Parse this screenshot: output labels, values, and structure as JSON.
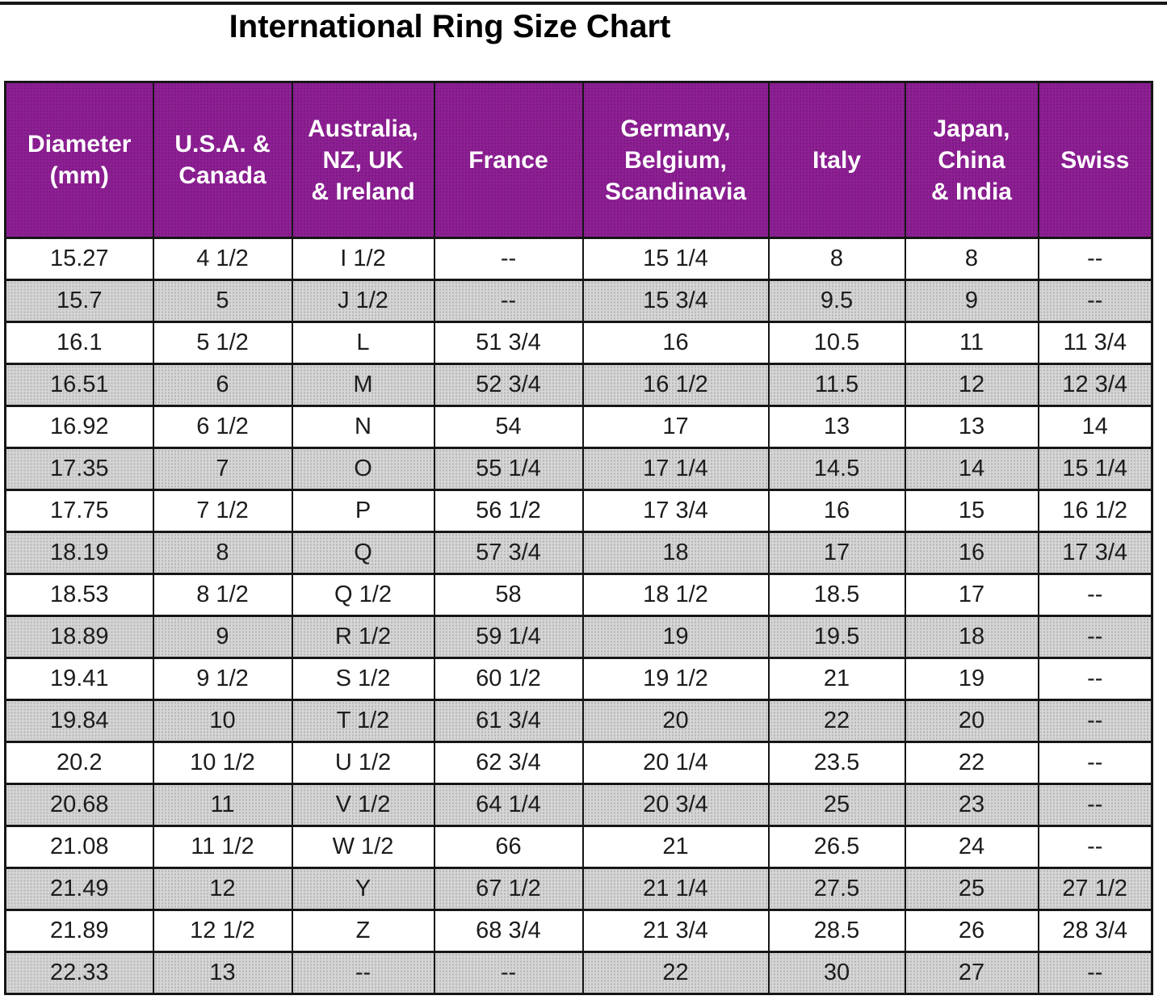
{
  "page": {
    "title": "International Ring Size Chart"
  },
  "colors": {
    "title_text": "#000000",
    "header_bg": "#8E2094",
    "header_text": "#FFFFFF",
    "row_white": "#FFFFFF",
    "row_gray": "#D0D0D0",
    "border": "#161616"
  },
  "chart_data": {
    "type": "table",
    "title": "International Ring Size Chart",
    "columns": [
      "Diameter\n(mm)",
      "U.S.A. &\nCanada",
      "Australia,\nNZ, UK\n& Ireland",
      "France",
      "Germany,\nBelgium,\nScandinavia",
      "Italy",
      "Japan,\nChina\n& India",
      "Swiss"
    ],
    "rows": [
      [
        "15.27",
        "4 1/2",
        "I 1/2",
        "--",
        "15 1/4",
        "8",
        "8",
        "--"
      ],
      [
        "15.7",
        "5",
        "J 1/2",
        "--",
        "15 3/4",
        "9.5",
        "9",
        "--"
      ],
      [
        "16.1",
        "5 1/2",
        "L",
        "51 3/4",
        "16",
        "10.5",
        "11",
        "11 3/4"
      ],
      [
        "16.51",
        "6",
        "M",
        "52 3/4",
        "16 1/2",
        "11.5",
        "12",
        "12 3/4"
      ],
      [
        "16.92",
        "6 1/2",
        "N",
        "54",
        "17",
        "13",
        "13",
        "14"
      ],
      [
        "17.35",
        "7",
        "O",
        "55 1/4",
        "17 1/4",
        "14.5",
        "14",
        "15 1/4"
      ],
      [
        "17.75",
        "7 1/2",
        "P",
        "56 1/2",
        "17 3/4",
        "16",
        "15",
        "16 1/2"
      ],
      [
        "18.19",
        "8",
        "Q",
        "57 3/4",
        "18",
        "17",
        "16",
        "17 3/4"
      ],
      [
        "18.53",
        "8 1/2",
        "Q 1/2",
        "58",
        "18 1/2",
        "18.5",
        "17",
        "--"
      ],
      [
        "18.89",
        "9",
        "R 1/2",
        "59 1/4",
        "19",
        "19.5",
        "18",
        "--"
      ],
      [
        "19.41",
        "9 1/2",
        "S 1/2",
        "60 1/2",
        "19 1/2",
        "21",
        "19",
        "--"
      ],
      [
        "19.84",
        "10",
        "T 1/2",
        "61 3/4",
        "20",
        "22",
        "20",
        "--"
      ],
      [
        "20.2",
        "10 1/2",
        "U 1/2",
        "62 3/4",
        "20 1/4",
        "23.5",
        "22",
        "--"
      ],
      [
        "20.68",
        "11",
        "V 1/2",
        "64 1/4",
        "20 3/4",
        "25",
        "23",
        "--"
      ],
      [
        "21.08",
        "11 1/2",
        "W 1/2",
        "66",
        "21",
        "26.5",
        "24",
        "--"
      ],
      [
        "21.49",
        "12",
        "Y",
        "67 1/2",
        "21 1/4",
        "27.5",
        "25",
        "27 1/2"
      ],
      [
        "21.89",
        "12 1/2",
        "Z",
        "68 3/4",
        "21 3/4",
        "28.5",
        "26",
        "28 3/4"
      ],
      [
        "22.33",
        "13",
        "--",
        "--",
        "22",
        "30",
        "27",
        "--"
      ]
    ]
  }
}
